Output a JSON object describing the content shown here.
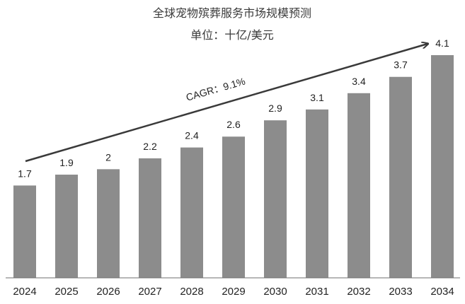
{
  "chart_data": {
    "type": "bar",
    "title": "全球宠物殡葬服务市场规模预测",
    "subtitle": "单位：十亿/美元",
    "categories": [
      "2024",
      "2025",
      "2026",
      "2027",
      "2028",
      "2029",
      "2030",
      "2031",
      "2032",
      "2033",
      "2034"
    ],
    "values": [
      1.7,
      1.9,
      2,
      2.2,
      2.4,
      2.6,
      2.9,
      3.1,
      3.4,
      3.7,
      4.1
    ],
    "value_labels": [
      "1.7",
      "1.9",
      "2",
      "2.2",
      "2.4",
      "2.6",
      "2.9",
      "3.1",
      "3.4",
      "3.7",
      "4.1"
    ],
    "annotation": "CAGR：9.1%",
    "ylim": [
      0,
      4.1
    ],
    "grid": false,
    "legend": "none",
    "colors": {
      "bar": "#8c8c8c",
      "arrow": "#3a3a3a",
      "axis": "#6f6f6f"
    }
  }
}
